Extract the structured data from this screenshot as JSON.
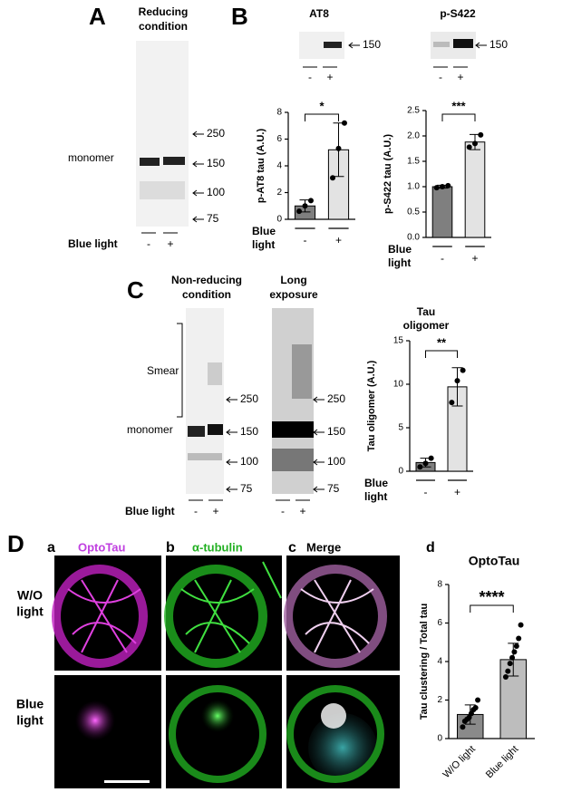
{
  "figure": {
    "A": {
      "letter": "A",
      "title": [
        "Reducing",
        "condition"
      ],
      "markers": [
        "250",
        "150",
        "100",
        "75"
      ],
      "band_label": "monomer",
      "treatment": "Blue light",
      "lanes": [
        "-",
        "+"
      ]
    },
    "B": {
      "letter": "B",
      "blots": [
        {
          "title": "AT8",
          "marker": "150",
          "lanes": [
            "-",
            "+"
          ]
        },
        {
          "title": "p-S422",
          "marker": "150",
          "lanes": [
            "-",
            "+"
          ]
        }
      ]
    },
    "C": {
      "letter": "C",
      "smear": "Smear",
      "band_label": "monomer",
      "treatment": "Blue light",
      "blots": [
        {
          "title": [
            "Non-reducing",
            "condition"
          ],
          "lanes": [
            "-",
            "+"
          ],
          "markers": [
            "250",
            "150",
            "100",
            "75"
          ]
        },
        {
          "title": [
            "Long",
            "exposure"
          ],
          "lanes": [
            "-",
            "+"
          ],
          "markers": [
            "250",
            "150",
            "100",
            "75"
          ]
        }
      ]
    },
    "D": {
      "letter": "D",
      "columns": [
        {
          "letter": "a",
          "title": "OptoTau"
        },
        {
          "letter": "b",
          "title": "α-tubulin"
        },
        {
          "letter": "c",
          "title": "Merge"
        }
      ],
      "rows": [
        [
          "W/O",
          "light"
        ],
        [
          "Blue",
          "light"
        ]
      ]
    }
  },
  "chart_data": [
    {
      "type": "bar",
      "ylabel": "p-AT8 tau (A.U.)",
      "xlabel": [
        "Blue",
        "light"
      ],
      "categories": [
        "-",
        "+"
      ],
      "values": [
        1.0,
        5.2
      ],
      "errors": [
        0.45,
        2.0
      ],
      "points": [
        [
          0.6,
          1.0,
          1.4
        ],
        [
          3.1,
          5.3,
          7.2
        ]
      ],
      "colors": [
        "#7f7f7f",
        "#e3e3e3"
      ],
      "ylim": [
        0,
        8
      ],
      "yticks": [
        0,
        2,
        4,
        6,
        8
      ],
      "significance": "*"
    },
    {
      "type": "bar",
      "ylabel": "p-S422 tau (A.U.)",
      "xlabel": [
        "Blue",
        "light"
      ],
      "categories": [
        "-",
        "+"
      ],
      "values": [
        1.0,
        1.88
      ],
      "errors": [
        0.03,
        0.15
      ],
      "points": [
        [
          0.98,
          1.0,
          1.02
        ],
        [
          1.78,
          1.85,
          2.02
        ]
      ],
      "colors": [
        "#7f7f7f",
        "#e3e3e3"
      ],
      "ylim": [
        0,
        2.5
      ],
      "yticks": [
        {
          "value": 0,
          "label": "0.0"
        },
        0.5,
        {
          "value": 1,
          "label": "1.0"
        },
        1.5,
        {
          "value": 2,
          "label": "2.0"
        },
        2.5
      ],
      "significance": "***"
    },
    {
      "type": "bar",
      "title": [
        "Tau",
        "oligomer"
      ],
      "ylabel": "Tau oligomer (A.U.)",
      "xlabel": [
        "Blue",
        "light"
      ],
      "categories": [
        "-",
        "+"
      ],
      "values": [
        1.0,
        9.7
      ],
      "errors": [
        0.5,
        2.2
      ],
      "points": [
        [
          0.5,
          0.9,
          1.5
        ],
        [
          7.9,
          10.4,
          11.6
        ]
      ],
      "colors": [
        "#7f7f7f",
        "#e3e3e3"
      ],
      "ylim": [
        0,
        15
      ],
      "yticks": [
        0,
        5,
        10,
        15
      ],
      "significance": "**"
    },
    {
      "type": "bar",
      "letter": "d",
      "title": "OptoTau",
      "ylabel": "Tau clustering / Total tau",
      "categories": [
        "W/O light",
        "Blue light"
      ],
      "values": [
        1.25,
        4.1
      ],
      "errors": [
        0.5,
        0.85
      ],
      "points": [
        [
          0.6,
          0.9,
          1.0,
          1.1,
          1.3,
          1.5,
          1.6,
          2.0
        ],
        [
          3.2,
          3.5,
          3.9,
          4.2,
          4.5,
          4.8,
          5.2,
          5.9
        ]
      ],
      "colors": [
        "#8a8a8a",
        "#bdbdbd"
      ],
      "ylim": [
        0,
        8
      ],
      "yticks": [
        0,
        2,
        4,
        6,
        8
      ],
      "significance": "****"
    }
  ]
}
